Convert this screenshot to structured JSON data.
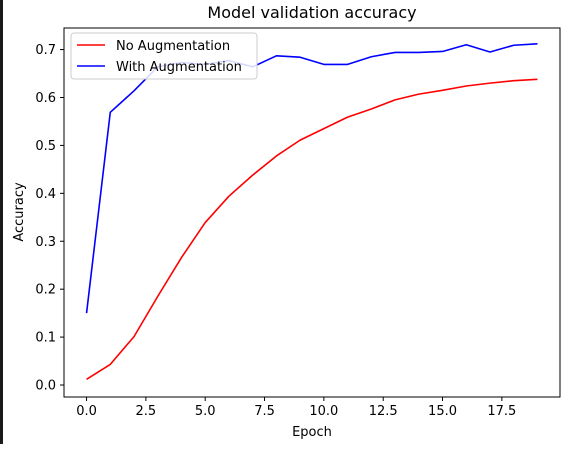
{
  "chart_data": {
    "type": "line",
    "title": "Model validation accuracy",
    "xlabel": "Epoch",
    "ylabel": "Accuracy",
    "xlim": [
      -0.95,
      19.95
    ],
    "ylim": [
      -0.025,
      0.745
    ],
    "xticks": [
      0.0,
      2.5,
      5.0,
      7.5,
      10.0,
      12.5,
      15.0,
      17.5
    ],
    "xtick_labels": [
      "0.0",
      "2.5",
      "5.0",
      "7.5",
      "10.0",
      "12.5",
      "15.0",
      "17.5"
    ],
    "yticks": [
      0.0,
      0.1,
      0.2,
      0.3,
      0.4,
      0.5,
      0.6,
      0.7
    ],
    "ytick_labels": [
      "0.0",
      "0.1",
      "0.2",
      "0.3",
      "0.4",
      "0.5",
      "0.6",
      "0.7"
    ],
    "grid": false,
    "legend_position": "top-left",
    "x": [
      0,
      1,
      2,
      3,
      4,
      5,
      6,
      7,
      8,
      9,
      10,
      11,
      12,
      13,
      14,
      15,
      16,
      17,
      18,
      19
    ],
    "series": [
      {
        "name": "No Augmentation",
        "color": "#ff0000",
        "values": [
          0.012,
          0.043,
          0.101,
          0.185,
          0.266,
          0.339,
          0.394,
          0.438,
          0.478,
          0.511,
          0.535,
          0.559,
          0.576,
          0.595,
          0.607,
          0.615,
          0.624,
          0.63,
          0.635,
          0.638
        ]
      },
      {
        "name": "With Augmentation",
        "color": "#0000ff",
        "values": [
          0.15,
          0.569,
          0.614,
          0.664,
          0.673,
          0.669,
          0.677,
          0.664,
          0.687,
          0.684,
          0.669,
          0.669,
          0.685,
          0.694,
          0.694,
          0.696,
          0.71,
          0.695,
          0.709,
          0.712
        ]
      }
    ]
  }
}
